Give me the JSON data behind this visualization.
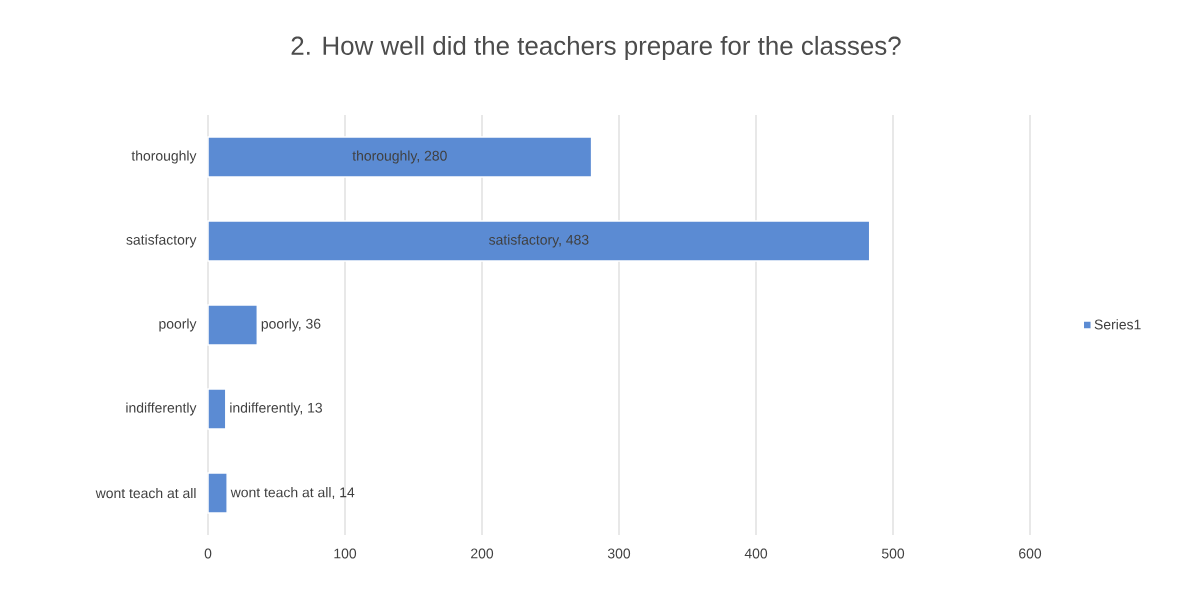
{
  "chart_data": {
    "type": "bar",
    "orientation": "horizontal",
    "title": "2. How well did the teachers prepare for the classes?",
    "categories": [
      "thoroughly",
      "satisfactory",
      "poorly",
      "indifferently",
      "wont teach at all"
    ],
    "series": [
      {
        "name": "Series1",
        "color": "#5b8bd3",
        "values": [
          280,
          483,
          36,
          13,
          14
        ],
        "value_labels": [
          "thoroughly, 280",
          "satisfactory, 483",
          "poorly, 36",
          "indifferently, 13",
          "wont teach at all, 14"
        ]
      }
    ],
    "xlim": [
      0,
      600
    ],
    "xticks": [
      0,
      100,
      200,
      300,
      400,
      500,
      600
    ],
    "grid": "x",
    "legend": "right"
  }
}
